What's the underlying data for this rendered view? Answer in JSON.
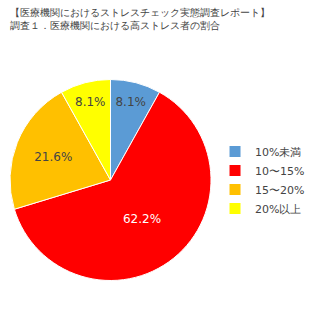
{
  "chart_data": {
    "type": "pie",
    "title": "【医療機関におけるストレスチェック実態調査レポート】",
    "subtitle": "調査１．医療機関における高ストレス者の割合",
    "categories": [
      "10%未満",
      "10〜15%",
      "15〜20%",
      "20%以上"
    ],
    "values": [
      8.1,
      62.2,
      21.6,
      8.1
    ],
    "value_labels": [
      "8.1%",
      "62.2%",
      "21.6%",
      "8.1%"
    ],
    "data_labels": true,
    "colors": [
      "#5b9bd5",
      "#ff0000",
      "#ffc000",
      "#ffff00"
    ],
    "legend": "right"
  }
}
